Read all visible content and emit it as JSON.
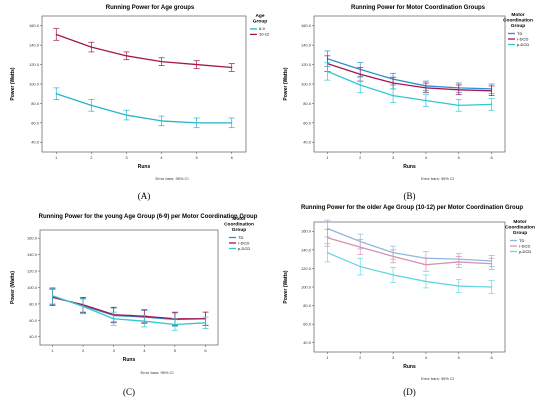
{
  "chart_data": [
    {
      "type": "line",
      "title": "Running Power for Age groups",
      "xlabel": "Runs",
      "ylabel": "Power (Watts)",
      "x": [
        1,
        2,
        3,
        4,
        5,
        6
      ],
      "ylim": [
        30,
        170
      ],
      "yticks": [
        "40.0",
        "60.0",
        "80.0",
        "100.0",
        "120.0",
        "140.0",
        "160.0"
      ],
      "legend_title": "Age Group",
      "legend_position": "top-right",
      "note": "Error bars: 95% CI",
      "panel_label": "(A)",
      "series": [
        {
          "name": "6-9",
          "color": "#26b4cc",
          "values": [
            90,
            78,
            68,
            62,
            60,
            60
          ],
          "ci": [
            6,
            6,
            5,
            5,
            5,
            5
          ]
        },
        {
          "name": "10-12",
          "color": "#a3174f",
          "values": [
            151,
            138,
            129,
            123,
            120,
            117
          ],
          "ci": [
            6,
            5,
            4,
            4,
            4,
            4
          ]
        }
      ]
    },
    {
      "type": "line",
      "title": "Running Power for Motor Coordination Groups",
      "xlabel": "Runs",
      "ylabel": "Power (Watts)",
      "x": [
        1,
        2,
        3,
        4,
        5,
        6
      ],
      "ylim": [
        30,
        170
      ],
      "yticks": [
        "40.0",
        "60.0",
        "80.0",
        "100.0",
        "120.0",
        "140.0",
        "160.0"
      ],
      "legend_title": "Motor Coordination Group",
      "legend_position": "top-right",
      "note": "Error bars: 95% CI",
      "panel_label": "(B)",
      "series": [
        {
          "name": "TD",
          "color": "#2a8fd0",
          "values": [
            126,
            115,
            105,
            98,
            96,
            95
          ],
          "ci": [
            8,
            7,
            6,
            5,
            5,
            5
          ]
        },
        {
          "name": "r-DCD",
          "color": "#a3174f",
          "values": [
            121,
            110,
            101,
            96,
            94,
            93
          ],
          "ci": [
            8,
            7,
            6,
            5,
            5,
            5
          ]
        },
        {
          "name": "p-DCD",
          "color": "#33c6d3",
          "values": [
            113,
            99,
            88,
            83,
            78,
            79
          ],
          "ci": [
            9,
            8,
            7,
            6,
            6,
            6
          ]
        }
      ]
    },
    {
      "type": "line",
      "title": "Running Power for the young Age Group (6-9) per Motor Coordination Group",
      "xlabel": "Runs",
      "ylabel": "Power (Watts)",
      "x": [
        1,
        2,
        3,
        4,
        5,
        6
      ],
      "ylim": [
        30,
        170
      ],
      "yticks": [
        "40.0",
        "60.0",
        "80.0",
        "100.0",
        "120.0",
        "140.0",
        "160.0"
      ],
      "legend_title": "Motor Coordination Group",
      "legend_position": "top-right",
      "note": "Error bars: 95% CI",
      "panel_label": "(C)",
      "series": [
        {
          "name": "TD",
          "color": "#2a8fd0",
          "values": [
            89,
            78,
            66,
            64,
            61,
            62
          ],
          "ci": [
            10,
            9,
            9,
            8,
            8,
            8
          ]
        },
        {
          "name": "r-DCD",
          "color": "#a3174f",
          "values": [
            88,
            79,
            67,
            65,
            62,
            62
          ],
          "ci": [
            10,
            9,
            9,
            8,
            8,
            8
          ]
        },
        {
          "name": "p-DCD",
          "color": "#33c6d3",
          "values": [
            90,
            77,
            62,
            59,
            55,
            57
          ],
          "ci": [
            10,
            9,
            8,
            7,
            7,
            7
          ]
        }
      ]
    },
    {
      "type": "line",
      "title": "Running Power for the older Age Group (10-12) per Motor Coordination Group",
      "xlabel": "Runs",
      "ylabel": "Power (Watts)",
      "x": [
        1,
        2,
        3,
        4,
        5,
        6
      ],
      "ylim": [
        30,
        170
      ],
      "yticks": [
        "40.0",
        "60.0",
        "80.0",
        "100.0",
        "120.0",
        "140.0",
        "160.0"
      ],
      "legend_title": "Motor Coordination Group",
      "legend_position": "top-right",
      "note": "Error bars: 95% CI",
      "panel_label": "(D)",
      "series": [
        {
          "name": "TD",
          "color": "#8fb8e0",
          "values": [
            163,
            149,
            137,
            131,
            130,
            128
          ],
          "ci": [
            9,
            8,
            7,
            7,
            6,
            6
          ]
        },
        {
          "name": "r-DCD",
          "color": "#d792b0",
          "values": [
            153,
            143,
            133,
            124,
            127,
            125
          ],
          "ci": [
            9,
            8,
            7,
            7,
            6,
            6
          ]
        },
        {
          "name": "p-DCD",
          "color": "#66d6e2",
          "values": [
            137,
            122,
            113,
            106,
            101,
            100
          ],
          "ci": [
            10,
            9,
            8,
            7,
            7,
            7
          ]
        }
      ]
    }
  ]
}
